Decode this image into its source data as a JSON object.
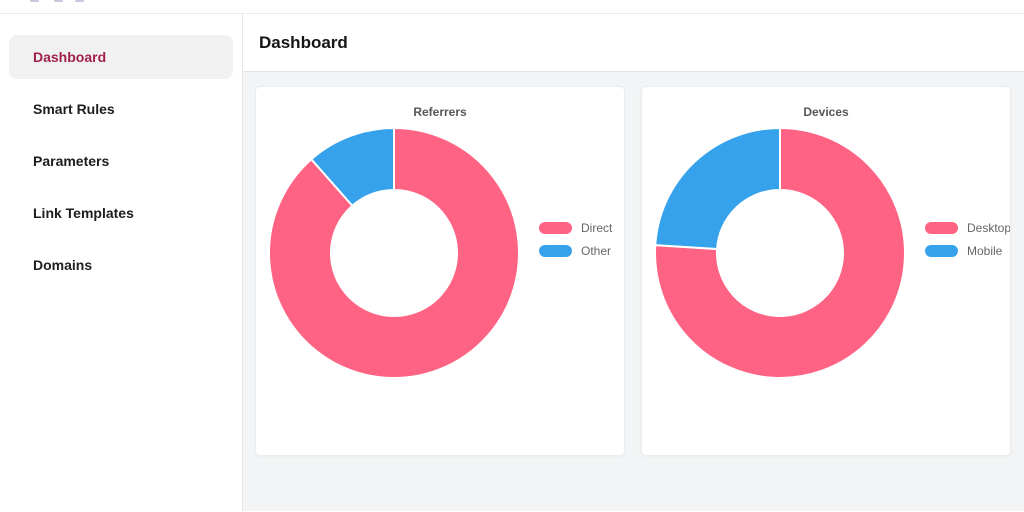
{
  "sidebar": {
    "items": [
      {
        "label": "Dashboard",
        "active": true
      },
      {
        "label": "Smart Rules",
        "active": false
      },
      {
        "label": "Parameters",
        "active": false
      },
      {
        "label": "Link Templates",
        "active": false
      },
      {
        "label": "Domains",
        "active": false
      }
    ]
  },
  "header": {
    "title": "Dashboard"
  },
  "colors": {
    "accent": "#a0214d",
    "series_red": "#ff6384",
    "series_blue": "#36a2eb",
    "main_background": "#f3f4f5"
  },
  "chart_data": [
    {
      "type": "pie",
      "donut": true,
      "title": "Referrers",
      "categories": [
        "Direct",
        "Other"
      ],
      "values": [
        88.5,
        11.5
      ],
      "unit": "percent",
      "colors": [
        "#ff6384",
        "#36a2eb"
      ],
      "legend_position": "right"
    },
    {
      "type": "pie",
      "donut": true,
      "title": "Devices",
      "categories": [
        "Desktop",
        "Mobile"
      ],
      "values": [
        76,
        24
      ],
      "unit": "percent",
      "colors": [
        "#ff6384",
        "#36a2eb"
      ],
      "legend_position": "right"
    }
  ]
}
